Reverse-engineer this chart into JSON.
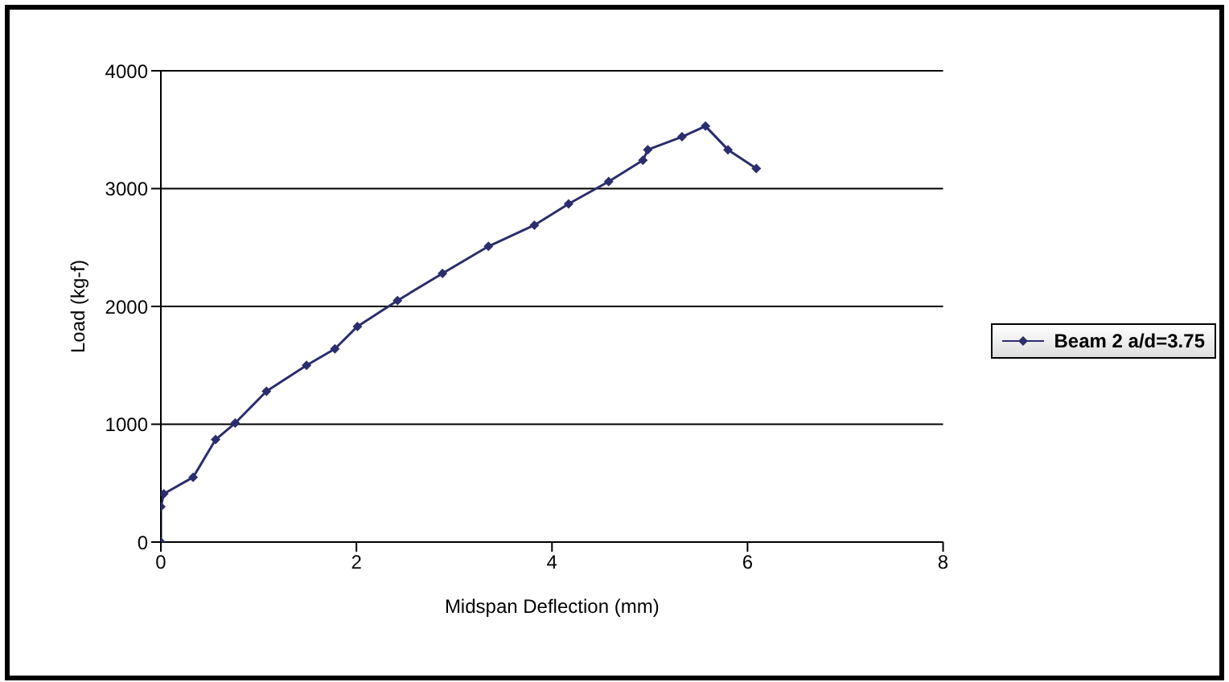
{
  "chart_data": {
    "type": "line",
    "xlabel": "Midspan Deflection (mm)",
    "ylabel": "Load (kg-f)",
    "xlim": [
      0,
      8
    ],
    "xticks": [
      0,
      2,
      4,
      6,
      8
    ],
    "ylim": [
      0,
      4000
    ],
    "yticks": [
      0,
      1000,
      2000,
      3000,
      4000
    ],
    "grid": "y",
    "legend": "right",
    "marker": "diamond",
    "line_style": "solid",
    "series": [
      {
        "name": "Beam 2 a/d=3.75",
        "color": "#2b2d6e",
        "x": [
          0,
          0,
          0.03,
          0.33,
          0.56,
          0.76,
          1.08,
          1.49,
          1.78,
          2.01,
          2.42,
          2.88,
          3.35,
          3.82,
          4.17,
          4.58,
          4.93,
          4.98,
          5.33,
          5.57,
          5.8,
          6.09
        ],
        "values": [
          0,
          300,
          410,
          550,
          870,
          1010,
          1280,
          1500,
          1640,
          1830,
          2050,
          2280,
          2510,
          2690,
          2870,
          3060,
          3240,
          3330,
          3440,
          3530,
          3330,
          3170
        ]
      }
    ]
  }
}
